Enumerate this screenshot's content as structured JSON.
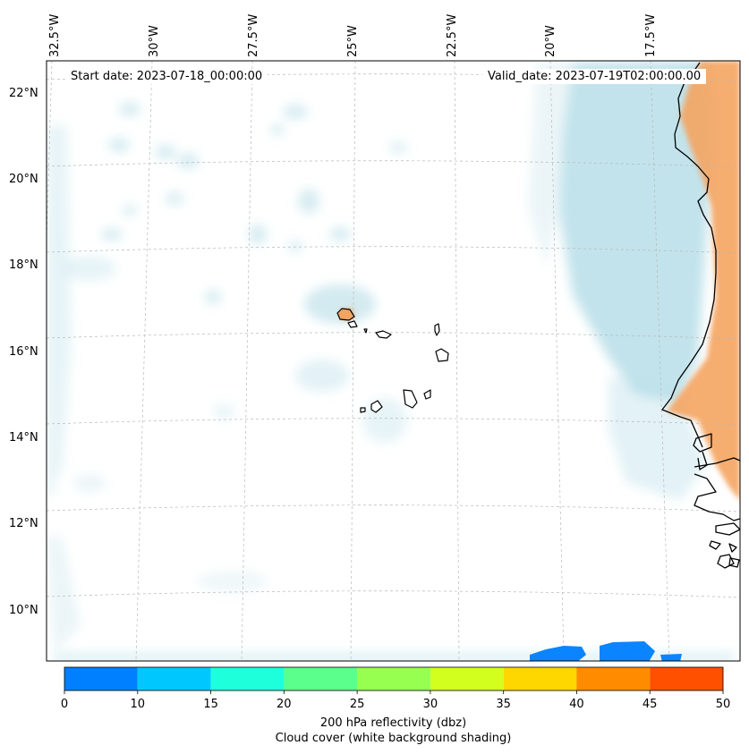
{
  "map": {
    "start_date": "Start date: 2023-07-18_00:00:00",
    "valid_date": "Valid_date: 2023-07-19T02:00:00.00",
    "lat_labels": [
      "22°N",
      "20°N",
      "18°N",
      "16°N",
      "14°N",
      "12°N",
      "10°N"
    ],
    "lon_labels": [
      "32.5°W",
      "30°W",
      "27.5°W",
      "25°W",
      "22.5°W",
      "20°W",
      "17.5°W"
    ],
    "region": [
      "Cape Verde Islands",
      "West African coast"
    ]
  },
  "colorbar": {
    "ticks": [
      "0",
      "10",
      "15",
      "20",
      "25",
      "30",
      "35",
      "40",
      "45",
      "50"
    ],
    "colors": [
      "#0080ff",
      "#00c8ff",
      "#1effdc",
      "#5aff8c",
      "#96ff50",
      "#d2ff1e",
      "#ffd700",
      "#ff8c00",
      "#ff5000"
    ],
    "label": "200 hPa reflectivity (dbz)",
    "sublabel": "Cloud cover (white background shading)"
  },
  "legend_colors": {
    "cloud_cover": "#aed9e4",
    "warm_land_shading": "#f4a460",
    "reflectivity_low": "#0080ff"
  }
}
